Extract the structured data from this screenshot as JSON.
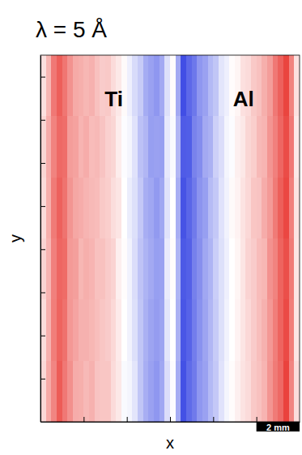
{
  "chart_data": {
    "type": "heatmap",
    "title": "λ = 5 Å",
    "x_label": "x",
    "y_label": "y",
    "xlim": [
      0,
      12
    ],
    "ylim": [
      0,
      17
    ],
    "xticks": [
      2,
      4,
      6,
      8,
      10
    ],
    "yticks": [
      2,
      4,
      6,
      8,
      10,
      12,
      14,
      16
    ],
    "tick_labels": false,
    "color_range": [
      -0.8,
      0.8
    ],
    "annotations": [
      {
        "text": "Ti",
        "x": 3.4,
        "y": 14.9
      },
      {
        "text": "Al",
        "x": 9.4,
        "y": 14.9
      }
    ],
    "scale_bar": {
      "length": 2,
      "label": "2 mm"
    },
    "cells": [
      [
        0.12,
        0.28,
        0.52,
        0.62,
        0.53,
        0.42,
        0.33,
        0.31,
        0.28,
        0.3,
        0.24,
        0.2,
        0.21,
        0.14,
        0.09,
        0.02,
        -0.06,
        -0.14,
        -0.2,
        -0.32,
        -0.36,
        -0.4,
        -0.33,
        -0.12,
        0.01,
        -0.33,
        -0.68,
        -0.58,
        -0.52,
        -0.4,
        -0.36,
        -0.27,
        -0.22,
        -0.1,
        -0.06,
        0.01,
        0.04,
        0.12,
        0.14,
        0.21,
        0.24,
        0.31,
        0.38,
        0.52,
        0.61,
        0.72,
        0.48,
        0.12
      ],
      [
        0.16,
        0.32,
        0.48,
        0.58,
        0.56,
        0.38,
        0.36,
        0.29,
        0.32,
        0.26,
        0.27,
        0.23,
        0.18,
        0.16,
        0.07,
        -0.01,
        -0.04,
        -0.11,
        -0.24,
        -0.28,
        -0.37,
        -0.36,
        -0.37,
        -0.09,
        -0.02,
        -0.28,
        -0.63,
        -0.62,
        -0.48,
        -0.44,
        -0.33,
        -0.3,
        -0.18,
        -0.13,
        -0.04,
        -0.01,
        0.06,
        0.09,
        0.16,
        0.19,
        0.27,
        0.29,
        0.41,
        0.49,
        0.59,
        0.69,
        0.52,
        0.09
      ],
      [
        0.14,
        0.31,
        0.51,
        0.61,
        0.54,
        0.41,
        0.34,
        0.32,
        0.29,
        0.27,
        0.26,
        0.21,
        0.19,
        0.13,
        0.1,
        0.0,
        -0.07,
        -0.12,
        -0.21,
        -0.31,
        -0.34,
        -0.39,
        -0.34,
        -0.11,
        0.0,
        -0.31,
        -0.66,
        -0.59,
        -0.51,
        -0.41,
        -0.37,
        -0.26,
        -0.21,
        -0.11,
        -0.05,
        0.02,
        0.05,
        0.11,
        0.15,
        0.22,
        0.23,
        0.32,
        0.39,
        0.51,
        0.62,
        0.71,
        0.49,
        0.11
      ],
      [
        0.17,
        0.29,
        0.49,
        0.59,
        0.57,
        0.39,
        0.37,
        0.28,
        0.31,
        0.29,
        0.24,
        0.24,
        0.2,
        0.17,
        0.06,
        0.01,
        -0.05,
        -0.13,
        -0.23,
        -0.29,
        -0.33,
        -0.37,
        -0.36,
        -0.08,
        0.01,
        -0.29,
        -0.64,
        -0.61,
        -0.49,
        -0.43,
        -0.34,
        -0.29,
        -0.19,
        -0.12,
        -0.06,
        0.0,
        0.04,
        0.1,
        0.17,
        0.2,
        0.26,
        0.28,
        0.42,
        0.48,
        0.6,
        0.68,
        0.51,
        0.1
      ],
      [
        0.13,
        0.3,
        0.5,
        0.6,
        0.55,
        0.4,
        0.35,
        0.3,
        0.3,
        0.28,
        0.25,
        0.22,
        0.2,
        0.15,
        0.08,
        0.0,
        -0.05,
        -0.12,
        -0.22,
        -0.3,
        -0.35,
        -0.38,
        -0.35,
        -0.1,
        0.0,
        -0.3,
        -0.65,
        -0.6,
        -0.5,
        -0.42,
        -0.35,
        -0.28,
        -0.2,
        -0.12,
        -0.05,
        0.0,
        0.05,
        0.1,
        0.15,
        0.2,
        0.25,
        0.3,
        0.4,
        0.5,
        0.6,
        0.7,
        0.5,
        0.1
      ],
      [
        0.15,
        0.33,
        0.47,
        0.63,
        0.52,
        0.43,
        0.32,
        0.31,
        0.27,
        0.3,
        0.23,
        0.22,
        0.22,
        0.14,
        0.09,
        -0.02,
        -0.04,
        -0.1,
        -0.22,
        -0.31,
        -0.36,
        -0.4,
        -0.34,
        -0.13,
        -0.01,
        -0.32,
        -0.67,
        -0.57,
        -0.51,
        -0.4,
        -0.36,
        -0.27,
        -0.21,
        -0.11,
        -0.04,
        0.01,
        0.06,
        0.11,
        0.14,
        0.21,
        0.24,
        0.29,
        0.41,
        0.51,
        0.58,
        0.73,
        0.47,
        0.13
      ]
    ]
  }
}
